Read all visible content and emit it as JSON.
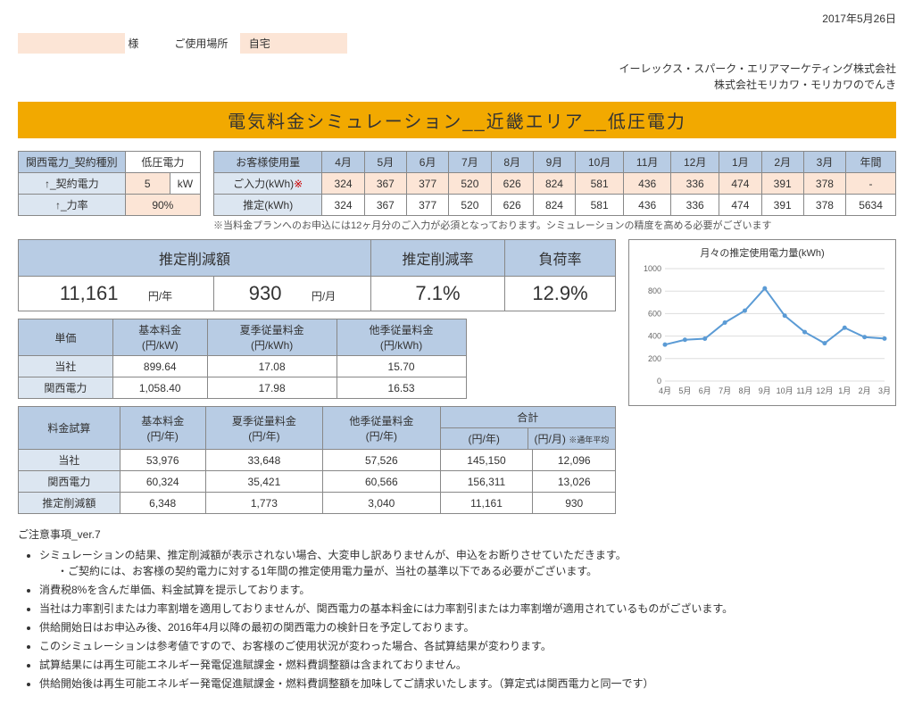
{
  "date": "2017年5月26日",
  "customer_suffix": "様",
  "usage_location_label": "ご使用場所",
  "usage_location": "自宅",
  "company_line1": "イーレックス・スパーク・エリアマーケティング株式会社",
  "company_line2": "株式会社モリカワ・モリカワのでんき",
  "title": "電気料金シミュレーション__近畿エリア__低圧電力",
  "contract": {
    "header": "関西電力_契約種別",
    "type": "低圧電力",
    "row1_label": "↑_契約電力",
    "row1_val": "5",
    "row1_unit": "kW",
    "row2_label": "↑_力率",
    "row2_val": "90%"
  },
  "usage": {
    "header": "お客様使用量",
    "months": [
      "4月",
      "5月",
      "6月",
      "7月",
      "8月",
      "9月",
      "10月",
      "11月",
      "12月",
      "1月",
      "2月",
      "3月",
      "年間"
    ],
    "row1_label": "ご入力(kWh)",
    "row1_asterisk": "※",
    "row1": [
      "324",
      "367",
      "377",
      "520",
      "626",
      "824",
      "581",
      "436",
      "336",
      "474",
      "391",
      "378",
      "-"
    ],
    "row2_label": "推定(kWh)",
    "row2": [
      "324",
      "367",
      "377",
      "520",
      "626",
      "824",
      "581",
      "436",
      "336",
      "474",
      "391",
      "378",
      "5634"
    ],
    "note": "※当料金プランへのお申込には12ヶ月分のご入力が必須となっております。シミュレーションの精度を高める必要がございます"
  },
  "estimate": {
    "h1": "推定削減額",
    "h2": "推定削減率",
    "h3": "負荷率",
    "v1_num": "11,161",
    "v1_unit": "円/年",
    "v1b_num": "930",
    "v1b_unit": "円/月",
    "v2": "7.1%",
    "v3": "12.9%"
  },
  "unit_price": {
    "c0": "単価",
    "c1": "基本料金",
    "c1u": "(円/kW)",
    "c2": "夏季従量料金",
    "c2u": "(円/kWh)",
    "c3": "他季従量料金",
    "c3u": "(円/kWh)",
    "r1_label": "当社",
    "r1": [
      "899.64",
      "17.08",
      "15.70"
    ],
    "r2_label": "関西電力",
    "r2": [
      "1,058.40",
      "17.98",
      "16.53"
    ]
  },
  "calc": {
    "c0": "料金試算",
    "c1": "基本料金",
    "c1u": "(円/年)",
    "c2": "夏季従量料金",
    "c2u": "(円/年)",
    "c3": "他季従量料金",
    "c3u": "(円/年)",
    "c4": "合計",
    "c4u1": "(円/年)",
    "c4u2": "(円/月)",
    "c4u2_note": "※通年平均",
    "r1_label": "当社",
    "r1": [
      "53,976",
      "33,648",
      "57,526",
      "145,150",
      "12,096"
    ],
    "r2_label": "関西電力",
    "r2": [
      "60,324",
      "35,421",
      "60,566",
      "156,311",
      "13,026"
    ],
    "r3_label": "推定削減額",
    "r3": [
      "6,348",
      "1,773",
      "3,040",
      "11,161",
      "930"
    ]
  },
  "chart": {
    "title": "月々の推定使用電力量(kWh)",
    "ylabels": [
      "0",
      "200",
      "400",
      "600",
      "800",
      "1000"
    ],
    "xlabels": [
      "4月",
      "5月",
      "6月",
      "7月",
      "8月",
      "9月",
      "10月",
      "11月",
      "12月",
      "1月",
      "2月",
      "3月"
    ],
    "values": [
      324,
      367,
      377,
      520,
      626,
      824,
      581,
      436,
      336,
      474,
      391,
      378
    ],
    "ymax": 1000,
    "line_color": "#5b9bd5",
    "grid_color": "#dddddd"
  },
  "notes_title": "ご注意事項_ver.7",
  "notes": [
    "シミュレーションの結果、推定削減額が表示されない場合、大変申し訳ありませんが、申込をお断りさせていただきます。",
    "消費税8%を含んだ単価、料金試算を提示しております。",
    "当社は力率割引または力率割増を適用しておりませんが、関西電力の基本料金には力率割引または力率割増が適用されているものがございます。",
    "供給開始日はお申込み後、2016年4月以降の最初の関西電力の検針日を予定しております。",
    "このシミュレーションは参考値ですので、お客様のご使用状況が変わった場合、各試算結果が変わります。",
    "試算結果には再生可能エネルギー発電促進賦課金・燃料費調整額は含まれておりません。",
    "供給開始後は再生可能エネルギー発電促進賦課金・燃料費調整額を加味してご請求いたします。（算定式は関西電力と同一です）"
  ],
  "sub_note": "・ご契約には、お客様の契約電力に対する1年間の推定使用電力量が、当社の基準以下である必要がございます。"
}
